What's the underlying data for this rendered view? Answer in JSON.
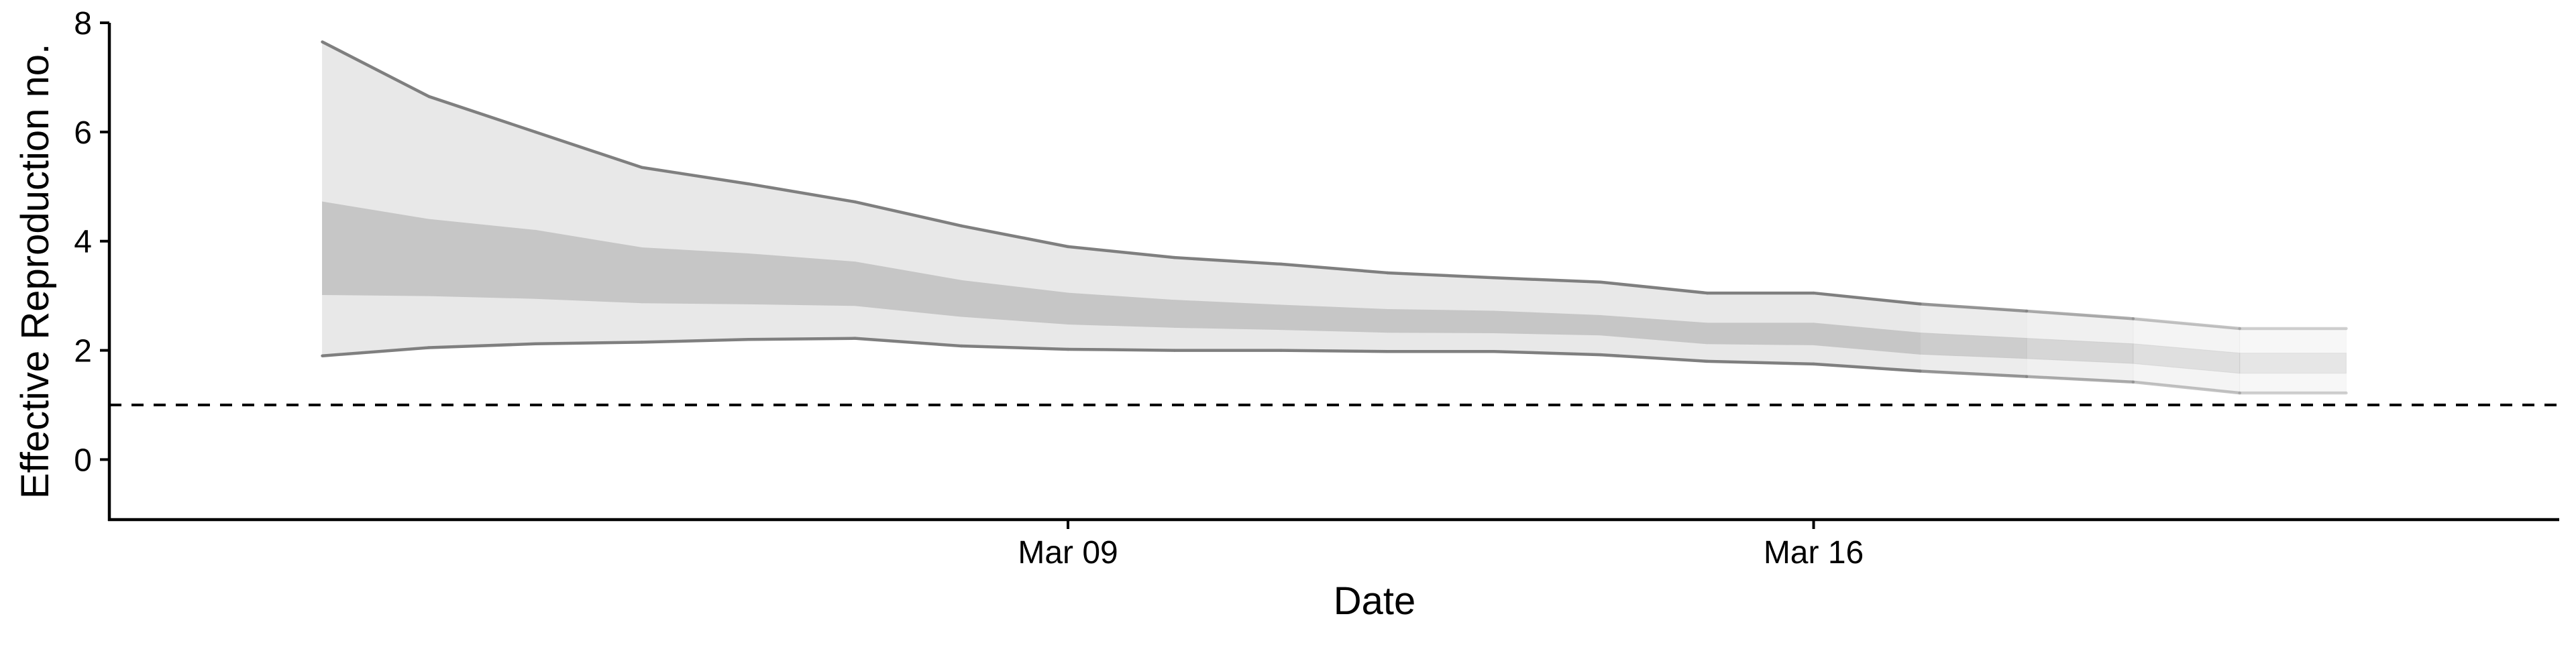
{
  "chart_data": {
    "type": "area",
    "title": "",
    "xlabel": "Date",
    "ylabel": "Effective Reproduction no.",
    "x_ticks": [
      {
        "date": "2020-03-09",
        "label": "Mar 09"
      },
      {
        "date": "2020-03-16",
        "label": "Mar 16"
      }
    ],
    "y_ticks": [
      0,
      2,
      4,
      6,
      8
    ],
    "xlim": [
      "2020-02-29",
      "2020-03-23"
    ],
    "ylim": [
      -1.1,
      8.0
    ],
    "reference_line": {
      "y": 1,
      "style": "dashed"
    },
    "dates": [
      "2020-03-02",
      "2020-03-03",
      "2020-03-04",
      "2020-03-05",
      "2020-03-06",
      "2020-03-07",
      "2020-03-08",
      "2020-03-09",
      "2020-03-10",
      "2020-03-11",
      "2020-03-12",
      "2020-03-13",
      "2020-03-14",
      "2020-03-15",
      "2020-03-16",
      "2020-03-17",
      "2020-03-18",
      "2020-03-19",
      "2020-03-20",
      "2020-03-21"
    ],
    "series": [
      {
        "interval": "outer",
        "lower": [
          1.9,
          2.05,
          2.12,
          2.15,
          2.2,
          2.22,
          2.08,
          2.02,
          2.0,
          2.0,
          1.98,
          1.98,
          1.92,
          1.8,
          1.75,
          1.62,
          1.52,
          1.42,
          1.22,
          1.22
        ],
        "upper": [
          7.65,
          6.65,
          6.0,
          5.35,
          5.05,
          4.72,
          4.28,
          3.9,
          3.7,
          3.58,
          3.42,
          3.33,
          3.25,
          3.05,
          3.05,
          2.85,
          2.72,
          2.58,
          2.4,
          2.4
        ]
      },
      {
        "interval": "inner",
        "lower": [
          3.02,
          3.0,
          2.95,
          2.87,
          2.85,
          2.82,
          2.62,
          2.48,
          2.42,
          2.38,
          2.33,
          2.32,
          2.28,
          2.12,
          2.1,
          1.93,
          1.85,
          1.76,
          1.58,
          1.58
        ],
        "upper": [
          4.72,
          4.4,
          4.2,
          3.88,
          3.77,
          3.62,
          3.28,
          3.05,
          2.92,
          2.83,
          2.75,
          2.72,
          2.64,
          2.5,
          2.5,
          2.32,
          2.22,
          2.12,
          1.95,
          1.95
        ]
      }
    ],
    "fade_start_date": "2020-03-17",
    "grid": false,
    "legend": "none",
    "colors": {
      "outer_band": "#e8e8e8",
      "inner_band": "#c6c6c6",
      "outline": "#7f7f7f",
      "axis": "#000000"
    }
  }
}
